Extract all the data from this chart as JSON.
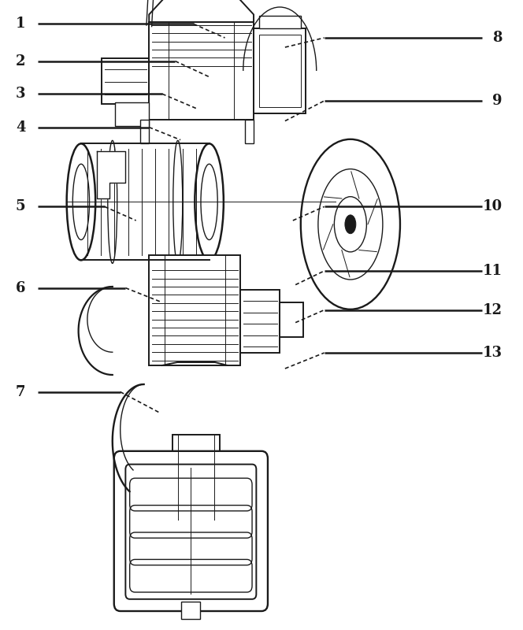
{
  "figsize": [
    6.64,
    8.0
  ],
  "dpi": 100,
  "bg_color": "#ffffff",
  "lc": "#1a1a1a",
  "font_size": 13,
  "font_weight": "bold",
  "left_labels": [
    {
      "num": "1",
      "xt": 0.03,
      "yt": 0.962,
      "xl": 0.37,
      "yl": 0.962,
      "xd": 0.43,
      "yd": 0.94
    },
    {
      "num": "2",
      "xt": 0.03,
      "yt": 0.903,
      "xl": 0.335,
      "yl": 0.903,
      "xd": 0.4,
      "yd": 0.878
    },
    {
      "num": "3",
      "xt": 0.03,
      "yt": 0.851,
      "xl": 0.31,
      "yl": 0.851,
      "xd": 0.375,
      "yd": 0.828
    },
    {
      "num": "4",
      "xt": 0.03,
      "yt": 0.798,
      "xl": 0.285,
      "yl": 0.798,
      "xd": 0.345,
      "yd": 0.778
    },
    {
      "num": "5",
      "xt": 0.03,
      "yt": 0.672,
      "xl": 0.2,
      "yl": 0.672,
      "xd": 0.26,
      "yd": 0.65
    },
    {
      "num": "6",
      "xt": 0.03,
      "yt": 0.543,
      "xl": 0.24,
      "yl": 0.543,
      "xd": 0.31,
      "yd": 0.52
    },
    {
      "num": "7",
      "xt": 0.03,
      "yt": 0.378,
      "xl": 0.23,
      "yl": 0.378,
      "xd": 0.305,
      "yd": 0.345
    }
  ],
  "right_labels": [
    {
      "num": "8",
      "xt": 0.96,
      "yt": 0.94,
      "xl": 0.62,
      "yl": 0.94,
      "xd": 0.545,
      "yd": 0.925
    },
    {
      "num": "9",
      "xt": 0.96,
      "yt": 0.84,
      "xl": 0.62,
      "yl": 0.84,
      "xd": 0.545,
      "yd": 0.808
    },
    {
      "num": "10",
      "xt": 0.96,
      "yt": 0.672,
      "xl": 0.62,
      "yl": 0.672,
      "xd": 0.56,
      "yd": 0.65
    },
    {
      "num": "11",
      "xt": 0.96,
      "yt": 0.57,
      "xl": 0.62,
      "yl": 0.57,
      "xd": 0.565,
      "yd": 0.548
    },
    {
      "num": "12",
      "xt": 0.96,
      "yt": 0.508,
      "xl": 0.62,
      "yl": 0.508,
      "xd": 0.565,
      "yd": 0.488
    },
    {
      "num": "13",
      "xt": 0.96,
      "yt": 0.44,
      "xl": 0.62,
      "yl": 0.44,
      "xd": 0.545,
      "yd": 0.415
    }
  ]
}
